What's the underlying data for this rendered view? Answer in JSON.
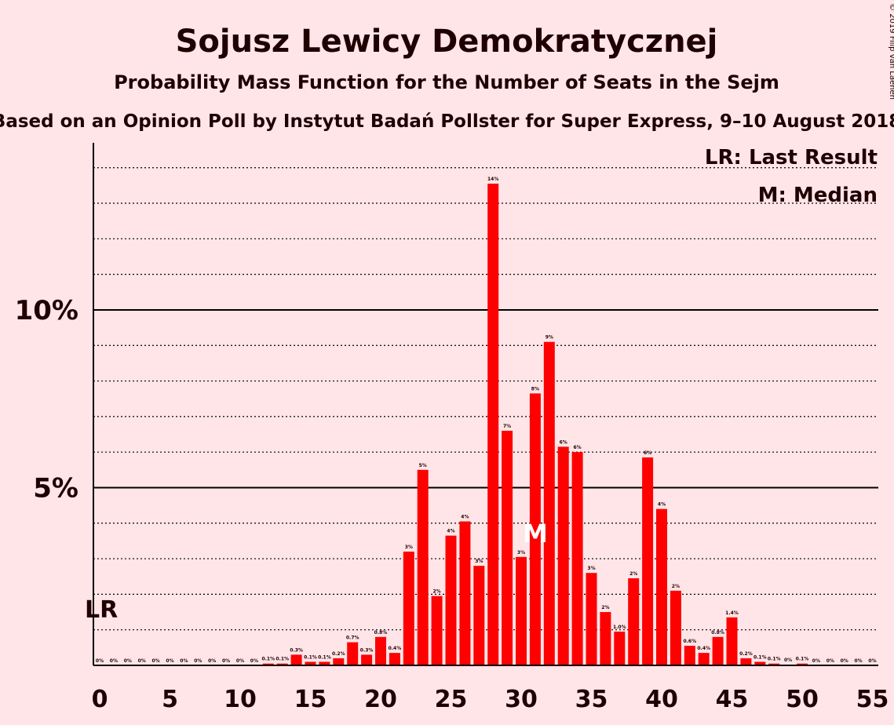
{
  "chart_data": {
    "type": "bar",
    "title": "Sojusz Lewicy Demokratycznej",
    "subtitle": "Probability Mass Function for the Number of Seats in the Sejm",
    "subtitle2": "Based on an Opinion Poll by Instytut Badań Pollster for Super Express, 9–10 August 2018",
    "copyright": "© 2019 Filip van Laenen",
    "legend": {
      "lr": "LR: Last Result",
      "median": "M: Median"
    },
    "last_result_marker": "LR",
    "last_result_seat": 0,
    "median_marker": "M",
    "median_seat": 31,
    "bar_color": "#ff0000",
    "ylim": [
      0,
      14.7
    ],
    "xlim": [
      0,
      55
    ],
    "y_ticks": [
      {
        "value": 5,
        "label": "5%"
      },
      {
        "value": 10,
        "label": "10%"
      }
    ],
    "x_ticks": [
      0,
      5,
      10,
      15,
      20,
      25,
      30,
      35,
      40,
      45,
      50,
      55
    ],
    "categories": [
      0,
      1,
      2,
      3,
      4,
      5,
      6,
      7,
      8,
      9,
      10,
      11,
      12,
      13,
      14,
      15,
      16,
      17,
      18,
      19,
      20,
      21,
      22,
      23,
      24,
      25,
      26,
      27,
      28,
      29,
      30,
      31,
      32,
      33,
      34,
      35,
      36,
      37,
      38,
      39,
      40,
      41,
      42,
      43,
      44,
      45,
      46,
      47,
      48,
      49,
      50,
      51,
      52,
      53,
      54,
      55
    ],
    "values": [
      0,
      0,
      0,
      0,
      0,
      0,
      0,
      0,
      0,
      0,
      0,
      0,
      0.05,
      0.05,
      0.3,
      0.1,
      0.1,
      0.2,
      0.65,
      0.3,
      0.8,
      0.35,
      3.2,
      5.5,
      1.95,
      3.65,
      4.05,
      2.8,
      13.55,
      6.6,
      3.05,
      7.65,
      9.1,
      6.15,
      6.0,
      2.6,
      1.5,
      0.95,
      2.45,
      5.85,
      4.4,
      2.1,
      0.55,
      0.35,
      0.8,
      1.35,
      0.2,
      0.1,
      0.05,
      0.02,
      0.05,
      0,
      0,
      0,
      0,
      0
    ],
    "labels": [
      "0%",
      "0%",
      "0%",
      "0%",
      "0%",
      "0%",
      "0%",
      "0%",
      "0%",
      "0%",
      "0%",
      "0%",
      "0.1%",
      "0.1%",
      "0.3%",
      "0.1%",
      "0.1%",
      "0.2%",
      "0.7%",
      "0.3%",
      "0.8%",
      "0.4%",
      "3%",
      "5%",
      "2%",
      "4%",
      "4%",
      "3%",
      "14%",
      "7%",
      "3%",
      "8%",
      "9%",
      "6%",
      "6%",
      "3%",
      "2%",
      "1.0%",
      "2%",
      "6%",
      "4%",
      "2%",
      "0.6%",
      "0.4%",
      "0.8%",
      "1.4%",
      "0.2%",
      "0.1%",
      "0.1%",
      "0%",
      "0.1%",
      "0%",
      "0%",
      "0%",
      "0%",
      "0%"
    ]
  }
}
